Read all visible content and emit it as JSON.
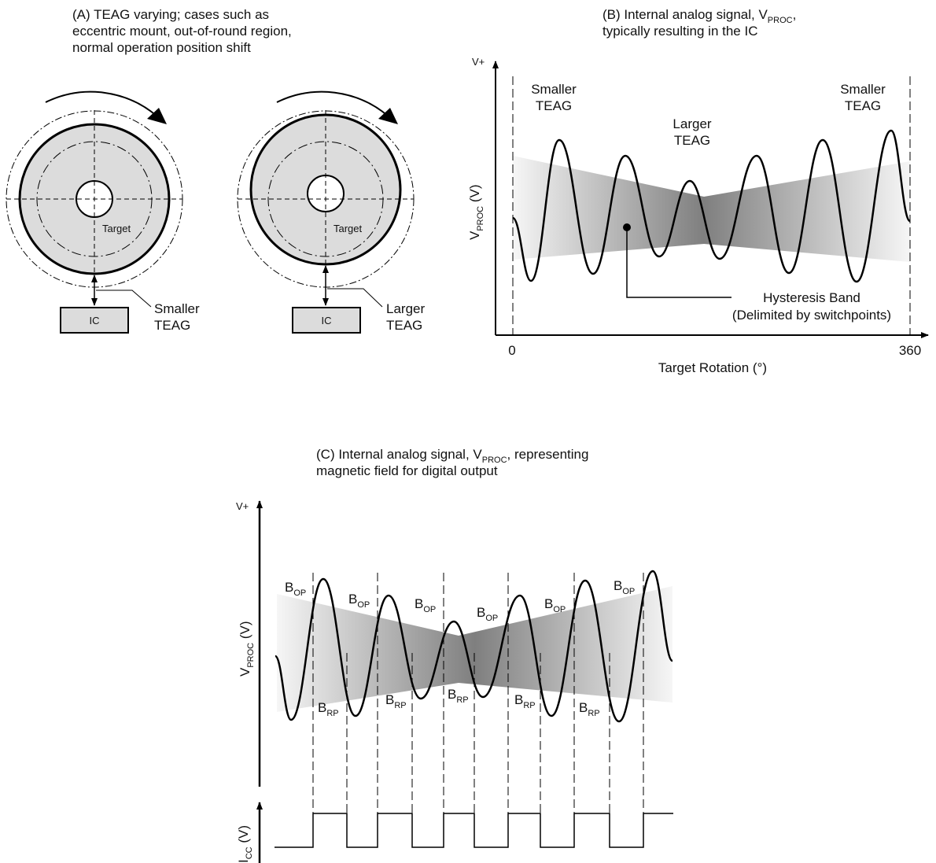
{
  "panelA": {
    "caption": [
      "(A) TEAG varying; cases such as",
      "eccentric mount, out-of-round region,",
      "normal operation position shift"
    ],
    "target_label": "Target",
    "ic_label": "IC",
    "smaller_teag": [
      "Smaller",
      "TEAG"
    ],
    "larger_teag": [
      "Larger",
      "TEAG"
    ]
  },
  "panelB": {
    "caption_line1_pre": "(B) Internal analog signal, V",
    "caption_line1_sub": "PROC",
    "caption_line1_post": ",",
    "caption_line2": "typically resulting in the IC",
    "vplus": "V+",
    "ylabel_main": "V",
    "ylabel_sub": "PROC",
    "ylabel_unit": " (V)",
    "xlabel": "Target Rotation (°)",
    "x_start": "0",
    "x_end": "360",
    "smaller_left": [
      "Smaller",
      "TEAG"
    ],
    "larger_mid": [
      "Larger",
      "TEAG"
    ],
    "smaller_right": [
      "Smaller",
      "TEAG"
    ],
    "hysteresis": [
      "Hysteresis Band",
      "(Delimited by switchpoints)"
    ]
  },
  "panelC": {
    "caption_line1_pre": "(C) Internal analog signal, V",
    "caption_line1_sub": "PROC",
    "caption_line1_post": ", representing",
    "caption_line2": "magnetic field for digital output",
    "vplus": "V+",
    "ylabel_main": "V",
    "ylabel_sub": "PROC",
    "ylabel_unit": " (V)",
    "icc_main": "I",
    "icc_sub": "CC",
    "icc_unit": " (V)",
    "bop_main": "B",
    "bop_sub": "OP",
    "brp_main": "B",
    "brp_sub": "RP"
  },
  "colors": {
    "band_light": "#f4f4f4",
    "band_dark": "#8a8a8a",
    "target_fill": "#dcdcdc",
    "ic_fill": "#dcdcdc",
    "line": "#000000"
  }
}
